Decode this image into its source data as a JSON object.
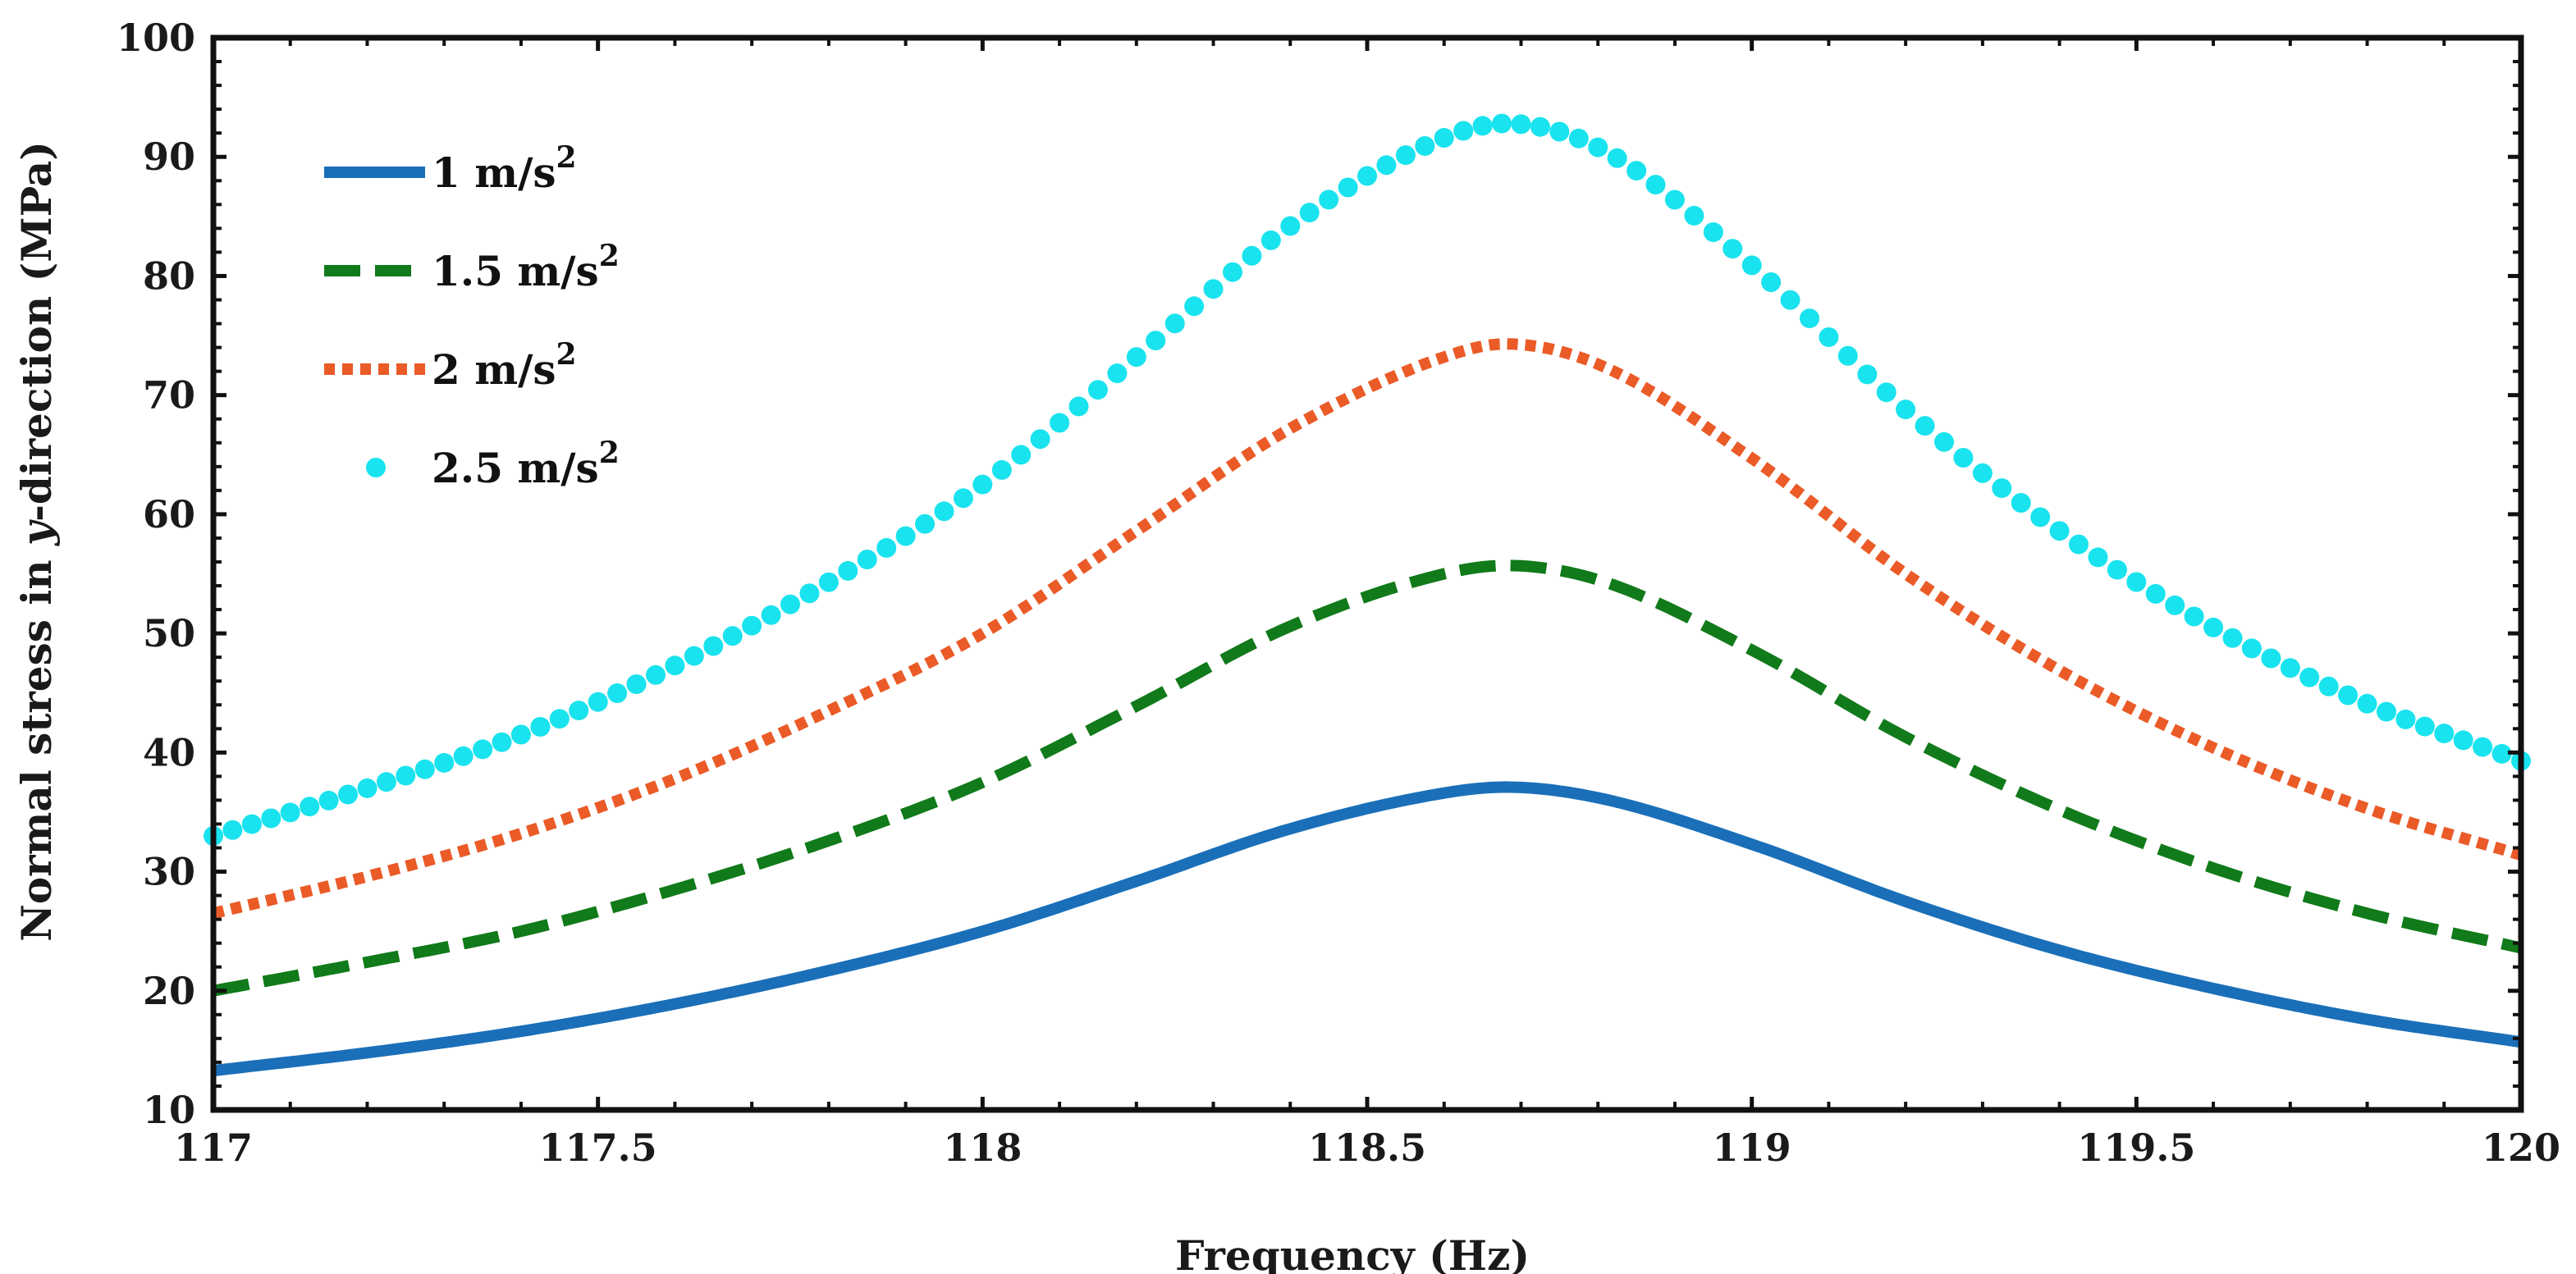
{
  "chart_data": {
    "type": "line",
    "title": "",
    "xlabel": "Frequency (Hz)",
    "ylabel": {
      "prefix": "Normal stress in ",
      "italic": "y",
      "suffix": "-direction (MPa)"
    },
    "xlim": [
      117,
      120
    ],
    "ylim": [
      10,
      100
    ],
    "x_ticks": [
      117,
      117.5,
      118,
      118.5,
      119,
      119.5,
      120
    ],
    "x_tick_labels": [
      "117",
      "117.5",
      "118",
      "118.5",
      "119",
      "119.5",
      "120"
    ],
    "y_ticks": [
      10,
      20,
      30,
      40,
      50,
      60,
      70,
      80,
      90,
      100
    ],
    "y_tick_labels": [
      "10",
      "20",
      "30",
      "40",
      "50",
      "60",
      "70",
      "80",
      "90",
      "100"
    ],
    "grid": false,
    "legend_position": "top-left",
    "x": [
      117.0,
      117.2,
      117.4,
      117.6,
      117.8,
      118.0,
      118.2,
      118.4,
      118.6,
      118.68,
      118.8,
      119.0,
      119.2,
      119.4,
      119.6,
      119.8,
      120.0
    ],
    "series": [
      {
        "name": "1 m/s",
        "superscript": "2",
        "style": "solid",
        "color": "#1a6fb8",
        "values": [
          13.3,
          14.8,
          16.6,
          18.9,
          21.7,
          25.0,
          29.2,
          33.6,
          36.6,
          37.1,
          36.2,
          32.3,
          27.5,
          23.4,
          20.2,
          17.6,
          15.7
        ]
      },
      {
        "name": "1.5 m/s",
        "superscript": "2",
        "style": "dashed",
        "color": "#117a1a",
        "values": [
          20.0,
          22.4,
          25.0,
          28.5,
          32.6,
          37.5,
          43.9,
          50.6,
          55.0,
          55.7,
          54.5,
          48.6,
          41.3,
          35.2,
          30.3,
          26.5,
          23.6
        ]
      },
      {
        "name": "2 m/s",
        "superscript": "2",
        "style": "dotted",
        "color": "#ea5b28",
        "values": [
          26.5,
          29.6,
          33.2,
          37.8,
          43.5,
          50.0,
          58.6,
          67.2,
          73.2,
          74.3,
          72.6,
          64.7,
          55.0,
          46.9,
          40.4,
          35.3,
          31.4
        ]
      },
      {
        "name": "2.5 m/s",
        "superscript": "2",
        "style": "markers",
        "color": "#19e3ee",
        "values": [
          33.0,
          37.0,
          41.5,
          47.3,
          54.3,
          62.5,
          73.2,
          84.2,
          91.6,
          92.8,
          90.8,
          80.9,
          68.8,
          58.6,
          50.5,
          44.1,
          39.3
        ]
      }
    ]
  }
}
